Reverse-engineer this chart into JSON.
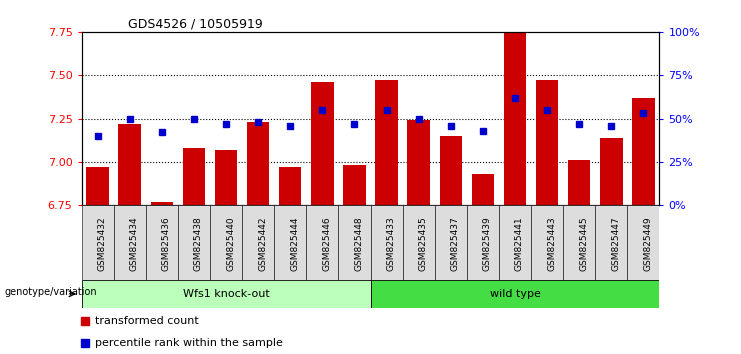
{
  "title": "GDS4526 / 10505919",
  "samples": [
    "GSM825432",
    "GSM825434",
    "GSM825436",
    "GSM825438",
    "GSM825440",
    "GSM825442",
    "GSM825444",
    "GSM825446",
    "GSM825448",
    "GSM825433",
    "GSM825435",
    "GSM825437",
    "GSM825439",
    "GSM825441",
    "GSM825443",
    "GSM825445",
    "GSM825447",
    "GSM825449"
  ],
  "bar_values": [
    6.97,
    7.22,
    6.77,
    7.08,
    7.07,
    7.23,
    6.97,
    7.46,
    6.98,
    7.47,
    7.24,
    7.15,
    6.93,
    7.77,
    7.47,
    7.01,
    7.14,
    7.37
  ],
  "percentile_values": [
    40,
    50,
    42,
    50,
    47,
    48,
    46,
    55,
    47,
    55,
    50,
    46,
    43,
    62,
    55,
    47,
    46,
    53
  ],
  "groups": [
    {
      "label": "Wfs1 knock-out",
      "start": 0,
      "end": 9,
      "color": "#bbffbb"
    },
    {
      "label": "wild type",
      "start": 9,
      "end": 18,
      "color": "#44dd44"
    }
  ],
  "ylim_left": [
    6.75,
    7.75
  ],
  "ylim_right": [
    0,
    100
  ],
  "bar_color": "#cc0000",
  "marker_color": "#0000cc",
  "background_color": "#ffffff",
  "left_yticks": [
    6.75,
    7.0,
    7.25,
    7.5,
    7.75
  ],
  "grid_yticks": [
    7.0,
    7.25,
    7.5
  ],
  "right_yticks": [
    0,
    25,
    50,
    75,
    100
  ],
  "right_ytick_labels": [
    "0%",
    "25%",
    "50%",
    "75%",
    "100%"
  ],
  "legend_bar_label": "transformed count",
  "legend_marker_label": "percentile rank within the sample",
  "genotype_label": "genotype/variation"
}
